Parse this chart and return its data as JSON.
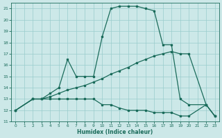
{
  "xlabel": "Humidex (Indice chaleur)",
  "bg_color": "#cce8e8",
  "grid_color": "#99cccc",
  "line_color": "#1a6b5a",
  "xlim": [
    -0.5,
    23.5
  ],
  "ylim": [
    11,
    21.5
  ],
  "xticks": [
    0,
    1,
    2,
    3,
    4,
    5,
    6,
    7,
    8,
    9,
    10,
    11,
    12,
    13,
    14,
    15,
    16,
    17,
    18,
    19,
    20,
    21,
    22,
    23
  ],
  "yticks": [
    11,
    12,
    13,
    14,
    15,
    16,
    17,
    18,
    19,
    20,
    21
  ],
  "series1_x": [
    0,
    2,
    3,
    4,
    5,
    6,
    7,
    8,
    9,
    10,
    11,
    12,
    13,
    14,
    15,
    16,
    17,
    18,
    19,
    20,
    22,
    23
  ],
  "series1_y": [
    12,
    13,
    13,
    13.5,
    14,
    16.5,
    15.0,
    15.0,
    15.0,
    18.5,
    21.0,
    21.2,
    21.2,
    21.2,
    21.0,
    20.8,
    17.8,
    17.8,
    13.0,
    12.5,
    12.5,
    11.5
  ],
  "series2_x": [
    0,
    2,
    3,
    4,
    5,
    6,
    7,
    8,
    9,
    10,
    11,
    12,
    13,
    14,
    15,
    16,
    17,
    18,
    19,
    20,
    22,
    23
  ],
  "series2_y": [
    12,
    13,
    13,
    13.2,
    13.5,
    13.8,
    14.0,
    14.2,
    14.5,
    14.8,
    15.2,
    15.5,
    15.8,
    16.2,
    16.5,
    16.8,
    17.0,
    17.2,
    17.0,
    17.0,
    12.5,
    11.5
  ],
  "series3_x": [
    0,
    2,
    3,
    4,
    5,
    6,
    7,
    8,
    9,
    10,
    11,
    12,
    13,
    14,
    15,
    16,
    17,
    18,
    19,
    20,
    22,
    23
  ],
  "series3_y": [
    12,
    13,
    13,
    13,
    13,
    13,
    13,
    13,
    13,
    12.5,
    12.5,
    12.2,
    12.0,
    12.0,
    12.0,
    11.8,
    11.8,
    11.8,
    11.5,
    11.5,
    12.5,
    11.5
  ]
}
